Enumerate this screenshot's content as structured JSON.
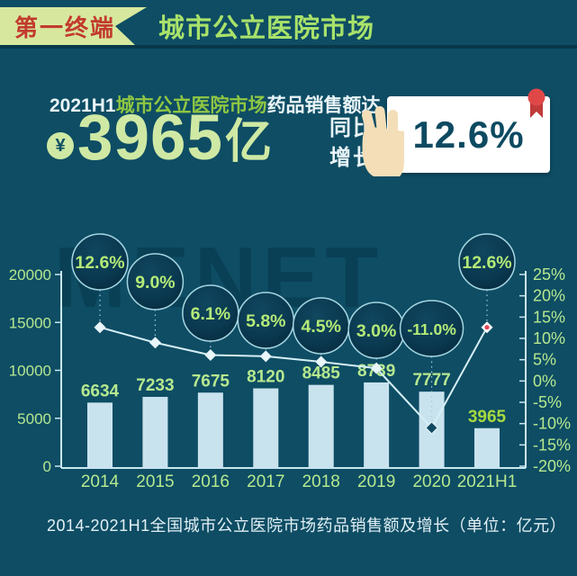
{
  "header": {
    "badge": "第一终端",
    "title": "城市公立医院市场"
  },
  "headline": {
    "line1_prefix": "2021H1",
    "line1_market": "城市公立医院市场",
    "line1_suffix": "药品销售额达",
    "currency_symbol": "¥",
    "amount_number": "3965",
    "amount_unit": "亿",
    "yoy_label_line1": "同比",
    "yoy_label_line2": "增长",
    "growth_badge": "12.6%"
  },
  "watermark": "MENET",
  "chart_data": {
    "type": "bar+line",
    "categories": [
      "2014",
      "2015",
      "2016",
      "2017",
      "2018",
      "2019",
      "2020",
      "2021H1"
    ],
    "series": [
      {
        "name": "药品销售额",
        "type": "bar",
        "values": [
          6634,
          7233,
          7675,
          8120,
          8485,
          8739,
          7777,
          3965
        ]
      },
      {
        "name": "同比增长",
        "type": "line",
        "values": [
          12.6,
          9.0,
          6.1,
          5.8,
          4.5,
          3.0,
          -11.0,
          12.6
        ]
      }
    ],
    "bubble_labels": [
      "12.6%",
      "9.0%",
      "6.1%",
      "5.8%",
      "4.5%",
      "3.0%",
      "-11.0%",
      "12.6%"
    ],
    "bar_value_labels": [
      "6634",
      "7233",
      "7675",
      "8120",
      "8485",
      "8739",
      "7777",
      "3965"
    ],
    "highlighted_bar_index": 7,
    "left_axis": {
      "min": 0,
      "max": 20000,
      "step": 5000,
      "labels": [
        "0",
        "5000",
        "10000",
        "15000",
        "20000"
      ]
    },
    "right_axis": {
      "min": -20,
      "max": 25,
      "step": 5,
      "labels": [
        "-20%",
        "-15%",
        "-10%",
        "-5%",
        "0%",
        "5%",
        "10%",
        "15%",
        "20%",
        "25%"
      ]
    },
    "grid": false,
    "legend": "none",
    "layout_hints": {
      "bubble_centers_y": [
        54,
        76,
        111,
        119,
        125,
        130,
        128,
        54
      ],
      "bubble_radius": 31
    }
  },
  "caption": "2014-2021H1全国城市公立医院市场药品销售额及增长（单位：亿元）",
  "colors": {
    "background": "#0e4d64",
    "badge_bg": "#d7e89e",
    "badge_text": "#c23b2e",
    "title_green": "#a9e26a",
    "accent_green": "#8fc643",
    "big_number_green": "#cfe9a4",
    "bar_fill": "#c9e3ee",
    "label_green": "#b6e88f",
    "highlight_green": "#a6da3f",
    "axis_line": "#c9e7f0",
    "line_color": "#d6eff6",
    "bubble_stroke": "#a5d6e2",
    "bubble_text": "#b4ea77",
    "marker_fill": "#e8f5f9",
    "marker_dark": "#0f4a61",
    "marker_red": "#e0475a",
    "card_bg": "#ffffff",
    "card_text": "#0d4a61",
    "hand": "#f3deb8",
    "ribbon_red": "#e04848",
    "watermark_color": "#032c42"
  }
}
